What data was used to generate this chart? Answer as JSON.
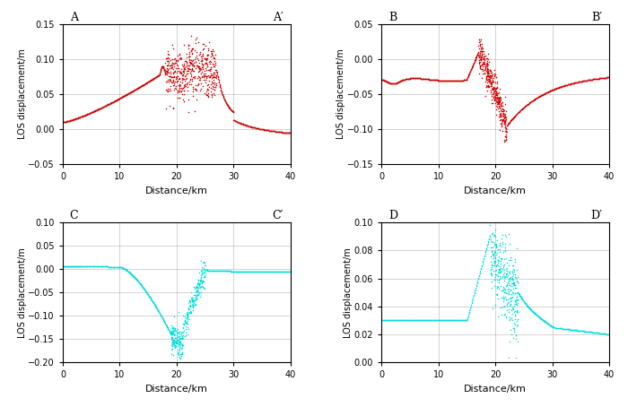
{
  "color_red": "#cc0000",
  "color_cyan": "#00dddd",
  "xlabel": "Distance/km",
  "ylabel": "LOS displacement/m",
  "xlim": [
    0,
    40
  ],
  "xticks": [
    0,
    10,
    20,
    30,
    40
  ],
  "grid_color": "#999999",
  "panels": [
    {
      "label_left": "A",
      "label_right": "A′",
      "ylim": [
        -0.05,
        0.15
      ],
      "yticks": [
        -0.05,
        0.0,
        0.05,
        0.1,
        0.15
      ],
      "color": "#cc0000"
    },
    {
      "label_left": "B",
      "label_right": "B′",
      "ylim": [
        -0.15,
        0.05
      ],
      "yticks": [
        -0.15,
        -0.1,
        -0.05,
        0.0,
        0.05
      ],
      "color": "#cc0000"
    },
    {
      "label_left": "C",
      "label_right": "C′",
      "ylim": [
        -0.2,
        0.1
      ],
      "yticks": [
        -0.2,
        -0.15,
        -0.1,
        -0.05,
        0.0,
        0.05,
        0.1
      ],
      "color": "#00dddd"
    },
    {
      "label_left": "D",
      "label_right": "D′",
      "ylim": [
        0.0,
        0.1
      ],
      "yticks": [
        0.0,
        0.02,
        0.04,
        0.06,
        0.08,
        0.1
      ],
      "color": "#00dddd"
    }
  ]
}
